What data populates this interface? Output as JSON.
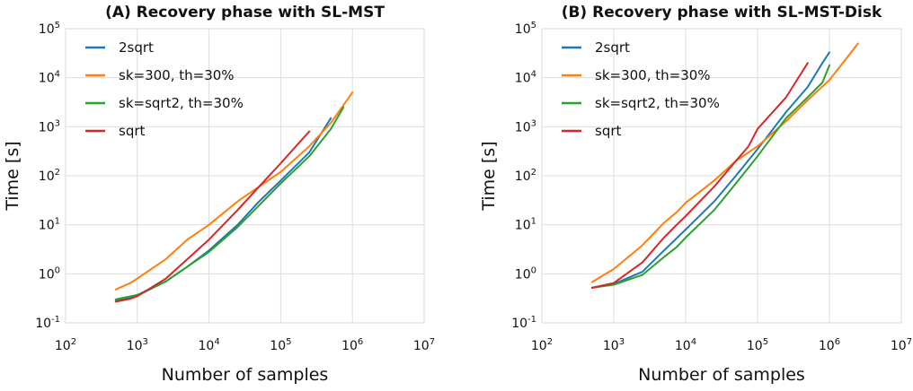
{
  "chart_data": [
    {
      "type": "line",
      "title": "(A) Recovery phase with SL-MST",
      "xlabel": "Number of samples",
      "ylabel": "Time [s]",
      "xscale": "log",
      "yscale": "log",
      "xlim": [
        100,
        10000000
      ],
      "ylim": [
        0.1,
        100000
      ],
      "x_ticks": [
        {
          "base": "10",
          "exp": "2"
        },
        {
          "base": "10",
          "exp": "3"
        },
        {
          "base": "10",
          "exp": "4"
        },
        {
          "base": "10",
          "exp": "5"
        },
        {
          "base": "10",
          "exp": "6"
        },
        {
          "base": "10",
          "exp": "7"
        }
      ],
      "y_ticks": [
        {
          "base": "10",
          "exp": "-1"
        },
        {
          "base": "10",
          "exp": "0"
        },
        {
          "base": "10",
          "exp": "1"
        },
        {
          "base": "10",
          "exp": "2"
        },
        {
          "base": "10",
          "exp": "3"
        },
        {
          "base": "10",
          "exp": "4"
        },
        {
          "base": "10",
          "exp": "5"
        }
      ],
      "grid": true,
      "legend_position": "top-left",
      "series": [
        {
          "name": "2sqrt",
          "color": "#1f77b4",
          "x": [
            500,
            1000,
            2500,
            5000,
            10000,
            25000,
            50000,
            100000,
            250000,
            500000
          ],
          "y": [
            0.29,
            0.36,
            0.7,
            1.4,
            3.0,
            10,
            30,
            80,
            300,
            1500
          ]
        },
        {
          "name": "sk=300, th=30%",
          "color": "#ff7f0e",
          "x": [
            500,
            800,
            1000,
            2500,
            5000,
            10000,
            25000,
            50000,
            100000,
            250000,
            500000,
            1000000
          ],
          "y": [
            0.48,
            0.65,
            0.8,
            2.0,
            5.0,
            10,
            30,
            60,
            120,
            400,
            1200,
            5000
          ]
        },
        {
          "name": "sk=sqrt2, th=30%",
          "color": "#2ca02c",
          "x": [
            500,
            1000,
            2500,
            5000,
            10000,
            25000,
            50000,
            100000,
            250000,
            500000,
            750000
          ],
          "y": [
            0.3,
            0.37,
            0.7,
            1.4,
            2.8,
            9,
            25,
            70,
            250,
            900,
            2500
          ]
        },
        {
          "name": "sqrt",
          "color": "#d62728",
          "x": [
            500,
            800,
            1000,
            2500,
            5000,
            10000,
            25000,
            50000,
            100000,
            250000
          ],
          "y": [
            0.27,
            0.31,
            0.35,
            0.8,
            2.0,
            5.0,
            20,
            60,
            180,
            800
          ]
        }
      ]
    },
    {
      "type": "line",
      "title": "(B) Recovery phase with SL-MST-Disk",
      "xlabel": "Number of samples",
      "ylabel": "Time [s]",
      "xscale": "log",
      "yscale": "log",
      "xlim": [
        100,
        10000000
      ],
      "ylim": [
        0.1,
        100000
      ],
      "x_ticks": [
        {
          "base": "10",
          "exp": "2"
        },
        {
          "base": "10",
          "exp": "3"
        },
        {
          "base": "10",
          "exp": "4"
        },
        {
          "base": "10",
          "exp": "5"
        },
        {
          "base": "10",
          "exp": "6"
        },
        {
          "base": "10",
          "exp": "7"
        }
      ],
      "y_ticks": [
        {
          "base": "10",
          "exp": "-1"
        },
        {
          "base": "10",
          "exp": "0"
        },
        {
          "base": "10",
          "exp": "1"
        },
        {
          "base": "10",
          "exp": "2"
        },
        {
          "base": "10",
          "exp": "3"
        },
        {
          "base": "10",
          "exp": "4"
        },
        {
          "base": "10",
          "exp": "5"
        }
      ],
      "grid": true,
      "legend_position": "top-left",
      "series": [
        {
          "name": "2sqrt",
          "color": "#1f77b4",
          "x": [
            500,
            1000,
            2500,
            5000,
            10000,
            25000,
            50000,
            100000,
            250000,
            500000,
            800000,
            1000000
          ],
          "y": [
            0.52,
            0.62,
            1.1,
            3.0,
            8.0,
            30,
            100,
            350,
            2000,
            6500,
            20000,
            33000
          ]
        },
        {
          "name": "sk=300, th=30%",
          "color": "#ff7f0e",
          "x": [
            500,
            1000,
            2500,
            5000,
            7500,
            10000,
            25000,
            50000,
            100000,
            250000,
            500000,
            1000000,
            2500000
          ],
          "y": [
            0.68,
            1.25,
            3.8,
            11,
            18,
            28,
            80,
            200,
            400,
            1300,
            3500,
            9000,
            50000
          ]
        },
        {
          "name": "sk=sqrt2, th=30%",
          "color": "#2ca02c",
          "x": [
            500,
            1000,
            2500,
            5000,
            7500,
            10000,
            25000,
            50000,
            100000,
            250000,
            500000,
            800000,
            1000000
          ],
          "y": [
            0.52,
            0.6,
            0.95,
            2.2,
            3.5,
            5.5,
            20,
            70,
            250,
            1500,
            4000,
            8000,
            18000
          ]
        },
        {
          "name": "sqrt",
          "color": "#d62728",
          "x": [
            500,
            1000,
            2500,
            5000,
            7500,
            10000,
            25000,
            50000,
            75000,
            100000,
            250000,
            500000
          ],
          "y": [
            0.52,
            0.65,
            1.7,
            5.5,
            10,
            15,
            60,
            200,
            400,
            900,
            4000,
            20000
          ]
        }
      ]
    }
  ]
}
